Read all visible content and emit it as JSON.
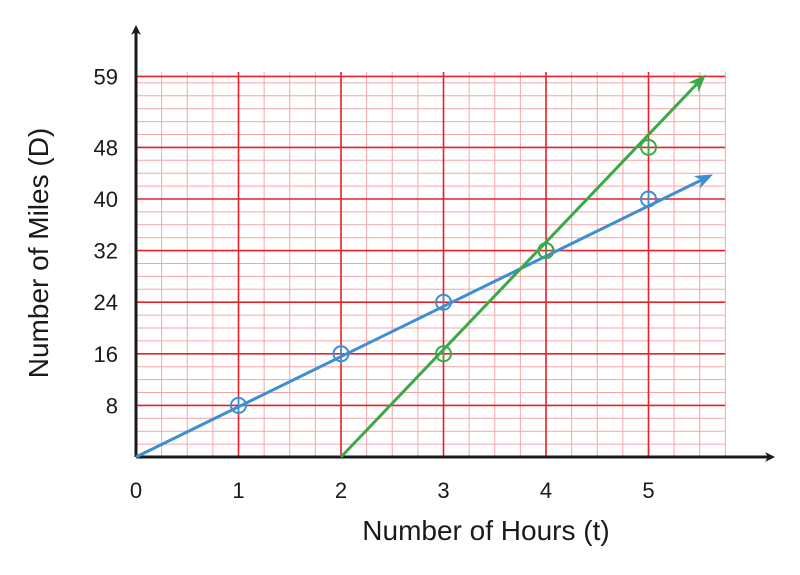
{
  "chart_data": {
    "type": "line",
    "title": "",
    "xlabel": "Number of Hours (t)",
    "ylabel": "Number of Miles (D)",
    "xlim": [
      0,
      5.7
    ],
    "ylim": [
      0,
      59
    ],
    "x_ticks": [
      0,
      1,
      2,
      3,
      4,
      5
    ],
    "y_ticks": [
      8,
      16,
      24,
      32,
      40,
      48,
      59
    ],
    "x_tick_labels": [
      "0",
      "1",
      "2",
      "3",
      "4",
      "5"
    ],
    "y_tick_labels": [
      "8",
      "16",
      "24",
      "32",
      "40",
      "48",
      "59"
    ],
    "grid": true,
    "legend": "none",
    "series": [
      {
        "color": "#3d8fd1",
        "line": {
          "x": [
            0,
            5.55
          ],
          "y": [
            0,
            43.2
          ]
        },
        "points": {
          "x": [
            1,
            2,
            3,
            4,
            5
          ],
          "y": [
            8,
            16,
            24,
            32,
            40
          ]
        }
      },
      {
        "color": "#3aaa48",
        "line": {
          "x": [
            2,
            5.5
          ],
          "y": [
            0,
            58.3
          ]
        },
        "points": {
          "x": [
            3,
            4,
            5
          ],
          "y": [
            16,
            32,
            48
          ]
        }
      }
    ],
    "colors": {
      "grid_major": "#e8202a",
      "grid_minor": "#f4a6ab",
      "axis": "#1a1a1a"
    }
  }
}
